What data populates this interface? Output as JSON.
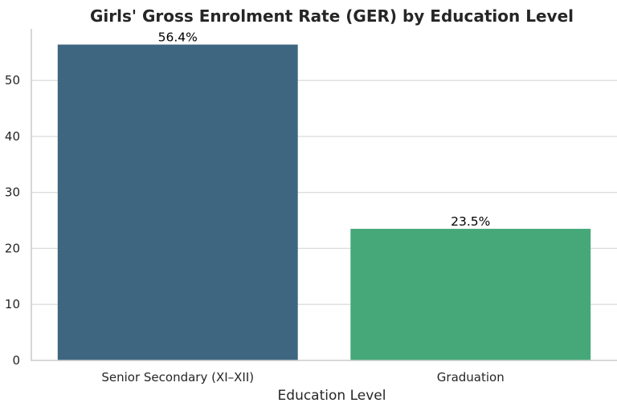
{
  "chart_data": {
    "type": "bar",
    "title": "Girls' Gross Enrolment Rate (GER) by Education Level",
    "xlabel": "Education Level",
    "ylabel": "",
    "categories": [
      "Senior Secondary (XI–XII)",
      "Graduation"
    ],
    "values": [
      56.4,
      23.5
    ],
    "data_labels": [
      "56.4%",
      "23.5%"
    ],
    "colors": [
      "#3e6680",
      "#46a878"
    ],
    "ylim": [
      0,
      59.2
    ],
    "yticks": [
      0,
      10,
      20,
      30,
      40,
      50
    ],
    "grid": true,
    "legend": "none"
  }
}
